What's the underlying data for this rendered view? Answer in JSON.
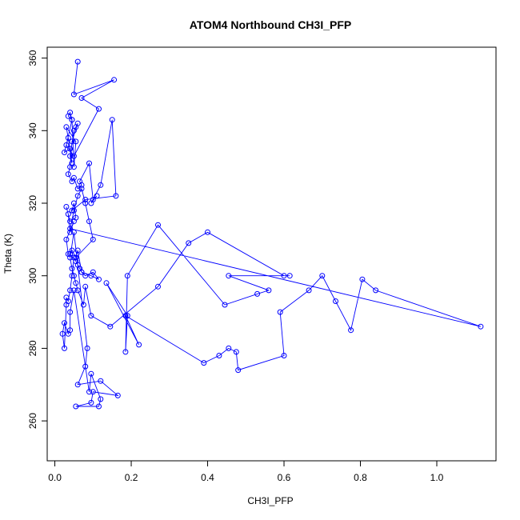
{
  "chart_data": {
    "type": "scatter",
    "title": "ATOM4 Northbound CH3I_PFP",
    "xlabel": "CH3I_PFP",
    "ylabel": "Theta (K)",
    "xlim": [
      -0.02,
      1.155
    ],
    "ylim": [
      249,
      363
    ],
    "xticks": [
      0.0,
      0.2,
      0.4,
      0.6,
      0.8,
      1.0
    ],
    "xtick_labels": [
      "0.0",
      "0.2",
      "0.4",
      "0.6",
      "0.8",
      "1.0"
    ],
    "yticks": [
      260,
      280,
      300,
      320,
      340,
      360
    ],
    "ytick_labels": [
      "260",
      "280",
      "300",
      "320",
      "340",
      "360"
    ],
    "grid": false,
    "legend": "none",
    "color": "#0000ff",
    "series": [
      {
        "mode": "lines+markers",
        "x": [
          0.06,
          0.05,
          0.155,
          0.07,
          0.115,
          0.05,
          0.03,
          0.045,
          0.04,
          0.035,
          0.045,
          0.05,
          0.055,
          0.03,
          0.04,
          0.025,
          0.035,
          0.045,
          0.04,
          0.05,
          0.055,
          0.06,
          0.045,
          0.04,
          0.035,
          0.045,
          0.05,
          0.06,
          0.07,
          0.065,
          0.09,
          0.1,
          0.11,
          0.095,
          0.12,
          0.15,
          0.16,
          0.08,
          0.045,
          0.05,
          0.055,
          0.04,
          0.03,
          0.035,
          0.04,
          0.05,
          0.03,
          0.035,
          0.04,
          0.045,
          0.055,
          0.06,
          0.07,
          0.08,
          0.1,
          0.115,
          0.095,
          0.07,
          0.065,
          0.06,
          0.055,
          0.05,
          0.045,
          0.04,
          0.035,
          0.03,
          0.03,
          0.025,
          0.02,
          0.025,
          0.035,
          0.04,
          0.04,
          0.05,
          0.09,
          0.095,
          0.12,
          0.115,
          0.055,
          0.095,
          0.1,
          0.165,
          0.12,
          0.06,
          0.08,
          0.085,
          0.05,
          0.04,
          0.045,
          0.05,
          0.055,
          0.06,
          0.075,
          0.08,
          0.095,
          0.145,
          0.27,
          0.35,
          0.4,
          0.6,
          0.615,
          0.455,
          0.56,
          0.53,
          0.445,
          0.27,
          0.19,
          0.185,
          0.19,
          0.135,
          0.22,
          0.185,
          0.39,
          0.43,
          0.455,
          0.475,
          0.48,
          0.6,
          0.59,
          0.665,
          0.7,
          0.735,
          0.775,
          0.805,
          0.84,
          1.115,
          0.04,
          0.05,
          0.06,
          0.07,
          0.08,
          0.09,
          0.1,
          0.055
        ],
        "y": [
          359,
          350,
          354,
          349,
          346,
          333,
          336,
          343,
          345,
          344,
          343,
          330,
          337,
          341,
          335,
          334,
          338,
          331,
          333,
          340,
          341,
          342,
          337,
          330,
          328,
          326,
          327,
          324,
          325,
          326,
          331,
          321,
          322,
          320,
          325,
          343,
          322,
          321,
          318,
          320,
          316,
          315,
          319,
          317,
          312,
          315,
          310,
          306,
          306,
          307,
          305,
          307,
          301,
          300,
          301,
          299,
          300,
          301,
          302,
          303,
          304,
          305,
          300,
          296,
          293,
          294,
          292,
          280,
          284,
          287,
          284,
          285,
          290,
          296,
          268,
          273,
          266,
          264,
          264,
          265,
          268,
          267,
          271,
          270,
          275,
          280,
          312,
          305,
          302,
          300,
          298,
          296,
          292,
          297,
          289,
          286,
          297,
          309,
          312,
          300,
          300,
          300,
          296,
          295,
          292,
          314,
          300,
          279,
          289,
          298,
          281,
          289,
          276,
          278,
          280,
          279,
          274,
          278,
          290,
          296,
          300,
          293,
          285,
          299,
          296,
          286,
          313,
          318,
          322,
          324,
          320,
          315,
          310,
          305
        ]
      }
    ]
  }
}
